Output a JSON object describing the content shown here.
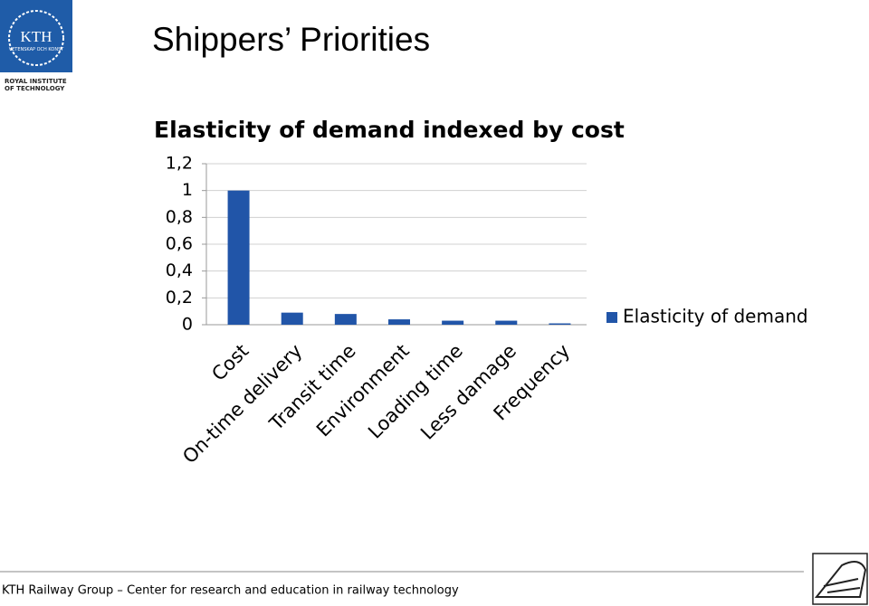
{
  "logo": {
    "name": "KTH",
    "motto": "VETENSKAP OCH KONST",
    "institute": [
      "ROYAL INSTITUTE",
      "OF TECHNOLOGY"
    ]
  },
  "slide_title": "Shippers’ Priorities",
  "footer": "KTH Railway Group – Center for research and education in railway technology",
  "chart_data": {
    "type": "bar",
    "title": "Elasticity of demand indexed by cost",
    "categories": [
      "Cost",
      "On-time delivery",
      "Transit time",
      "Environment",
      "Loading time",
      "Less damage",
      "Frequency"
    ],
    "series": [
      {
        "name": "Elasticity of demand",
        "color": "#2155a8",
        "values": [
          1,
          0.09,
          0.08,
          0.04,
          0.03,
          0.03,
          0.01
        ]
      }
    ],
    "ylim": [
      0,
      1.2
    ],
    "yticks": [
      0,
      {
        "value": 0.2,
        "label": "0,2"
      },
      {
        "value": 0.4,
        "label": "0,4"
      },
      {
        "value": 0.6,
        "label": "0,6"
      },
      {
        "value": 0.8,
        "label": "0,8"
      },
      1,
      {
        "value": 1.2,
        "label": "1,2"
      }
    ],
    "grid": true,
    "legend": "right"
  }
}
